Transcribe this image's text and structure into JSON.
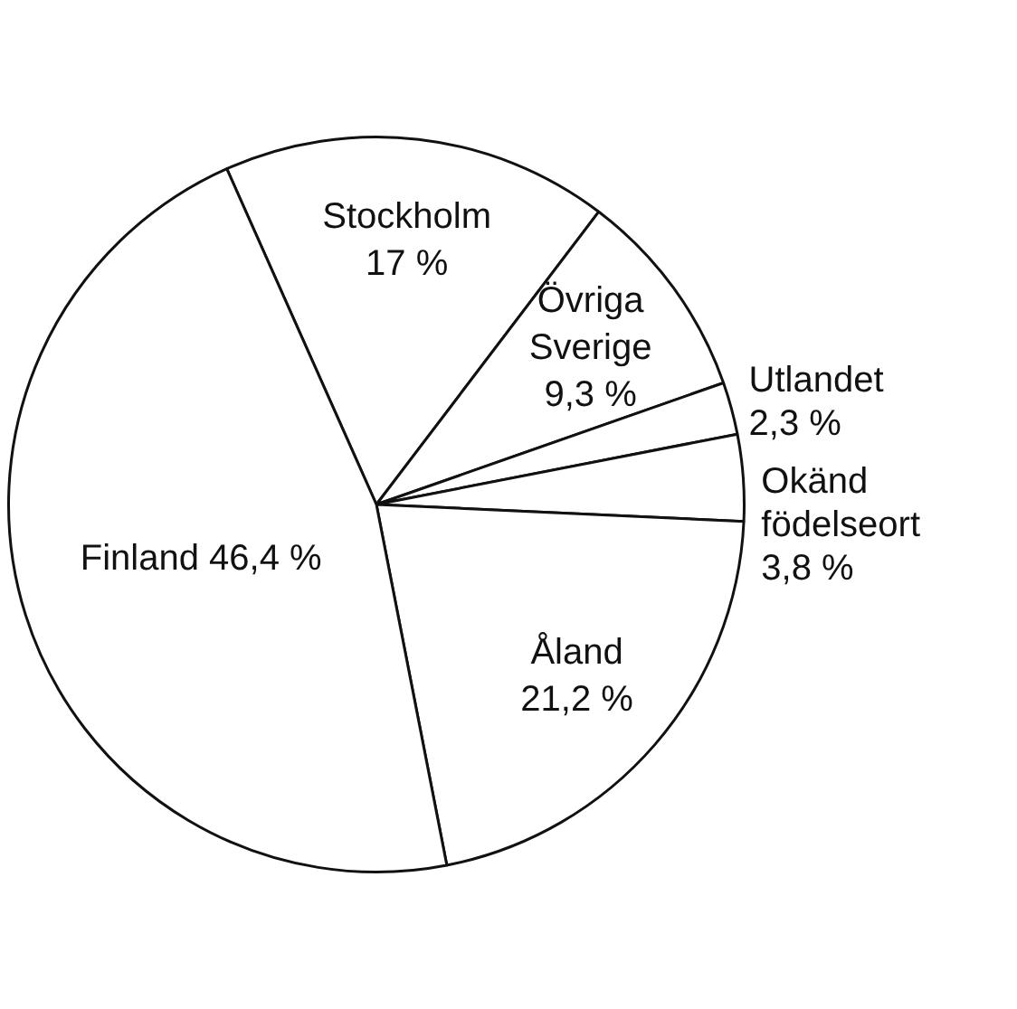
{
  "chart_data": {
    "type": "pie",
    "categories": [
      "Stockholm",
      "Övriga Sverige",
      "Utlandet",
      "Okänd födelseort",
      "Åland",
      "Finland"
    ],
    "values": [
      17,
      9.3,
      2.3,
      3.8,
      21.2,
      46.4
    ],
    "value_labels": [
      "17 %",
      "9,3 %",
      "2,3 %",
      "3,8 %",
      "21,2 %",
      "46,4 %"
    ],
    "colors": [
      "#ffffff",
      "#ffffff",
      "#ffffff",
      "#ffffff",
      "#ffffff",
      "#ffffff"
    ],
    "legend": false
  }
}
